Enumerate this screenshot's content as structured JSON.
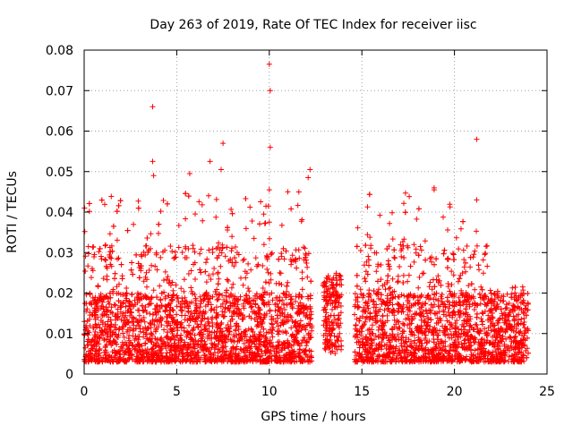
{
  "chart_data": {
    "type": "scatter",
    "title": "Day 263 of 2019, Rate Of TEC Index for receiver iisc",
    "xlabel": "GPS time / hours",
    "ylabel": "ROTI / TECUs",
    "xlim": [
      0,
      25
    ],
    "ylim": [
      0,
      0.08
    ],
    "xticks": [
      0,
      5,
      10,
      15,
      20,
      25
    ],
    "xtick_labels": [
      "0",
      "5",
      "10",
      "15",
      "20",
      "25"
    ],
    "yticks": [
      0,
      0.01,
      0.02,
      0.03,
      0.04,
      0.05,
      0.06,
      0.07,
      0.08
    ],
    "ytick_labels": [
      "0",
      "0.01",
      "0.02",
      "0.03",
      "0.04",
      "0.05",
      "0.06",
      "0.07",
      "0.08"
    ],
    "grid": true,
    "marker": "+",
    "color": "#ff0000",
    "data_gaps_hours": [
      [
        12.3,
        12.9
      ],
      [
        13.9,
        14.6
      ]
    ],
    "outliers": [
      {
        "x": 3.7,
        "y": 0.066
      },
      {
        "x": 3.7,
        "y": 0.0525
      },
      {
        "x": 3.75,
        "y": 0.049
      },
      {
        "x": 5.7,
        "y": 0.0495
      },
      {
        "x": 6.8,
        "y": 0.0525
      },
      {
        "x": 7.5,
        "y": 0.057
      },
      {
        "x": 7.4,
        "y": 0.0505
      },
      {
        "x": 10.0,
        "y": 0.0765
      },
      {
        "x": 10.05,
        "y": 0.07
      },
      {
        "x": 10.05,
        "y": 0.056
      },
      {
        "x": 10.0,
        "y": 0.0455
      },
      {
        "x": 9.95,
        "y": 0.0415
      },
      {
        "x": 10.0,
        "y": 0.0375
      },
      {
        "x": 11.0,
        "y": 0.045
      },
      {
        "x": 12.2,
        "y": 0.0505
      },
      {
        "x": 12.1,
        "y": 0.0485
      },
      {
        "x": 21.2,
        "y": 0.058
      },
      {
        "x": 21.2,
        "y": 0.043
      },
      {
        "x": 18.9,
        "y": 0.046
      },
      {
        "x": 18.9,
        "y": 0.0455
      }
    ],
    "dense_band": {
      "description": "thousands of ROTI samples, mostly between 0.003 and 0.02 TECU/s, occasional excursions to 0.03-0.045",
      "typical_min": 0.003,
      "typical_max": 0.02,
      "excursion_max": 0.045
    }
  }
}
